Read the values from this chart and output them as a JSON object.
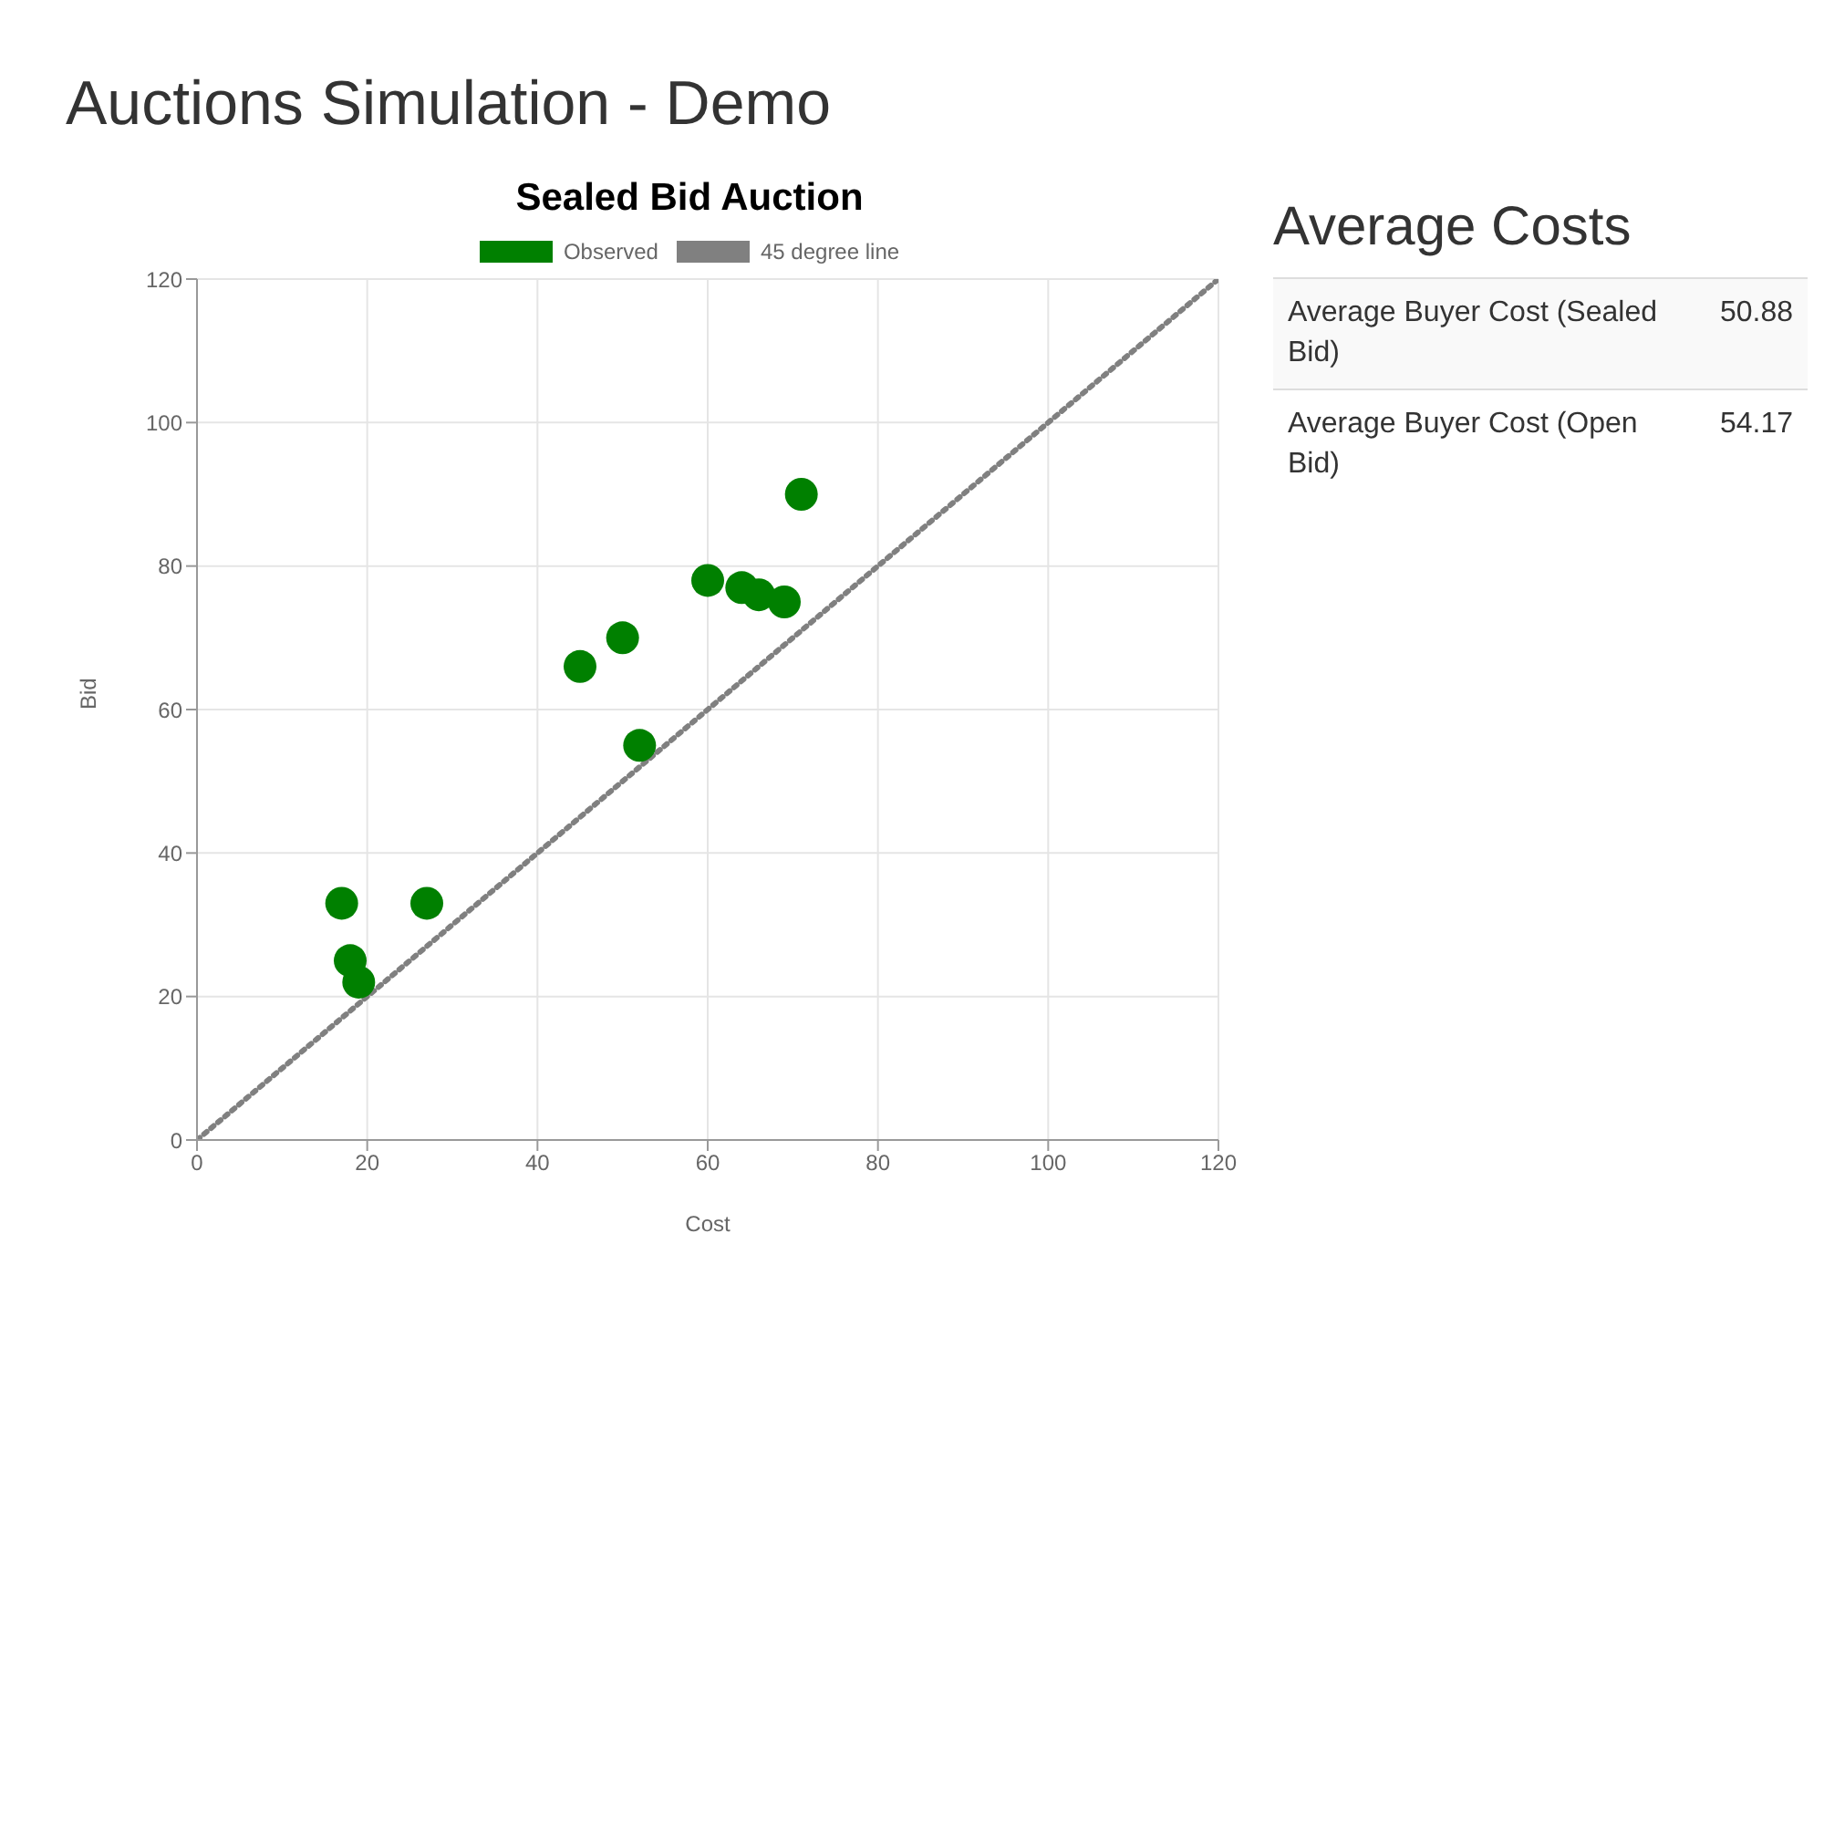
{
  "chart_data": [
    {
      "type": "scatter",
      "title": "Auctions Simulation - Demo",
      "subtitle": "Sealed Bid Auction",
      "xlabel": "Cost",
      "ylabel": "Bid",
      "xlim": [
        0,
        120
      ],
      "xticks": [
        0,
        20,
        40,
        60,
        80,
        100,
        120
      ],
      "ylim": [
        0,
        120
      ],
      "yticks": [
        0,
        20,
        40,
        60,
        80,
        100,
        120
      ],
      "grid": true,
      "legend": "top",
      "series": [
        {
          "name": "Observed",
          "type": "scatter",
          "marker": "circle",
          "color": "#008000",
          "x": [
            17,
            18,
            19,
            27,
            45,
            50,
            52,
            60,
            64,
            66,
            69,
            71
          ],
          "values": [
            33,
            25,
            22,
            33,
            66,
            70,
            55,
            78,
            77,
            76,
            75,
            90
          ]
        },
        {
          "name": "45 degree line",
          "type": "line",
          "color": "#808080",
          "line_style": "dotted",
          "x": [
            0,
            120
          ],
          "values": [
            0,
            120
          ]
        }
      ]
    },
    {
      "type": "other",
      "title": "Average Costs",
      "categories": [
        "Average Buyer Cost (Sealed Bid)",
        "Average Buyer Cost (Open Bid)"
      ],
      "values": [
        50.88,
        54.17
      ],
      "data_labels": true
    }
  ]
}
